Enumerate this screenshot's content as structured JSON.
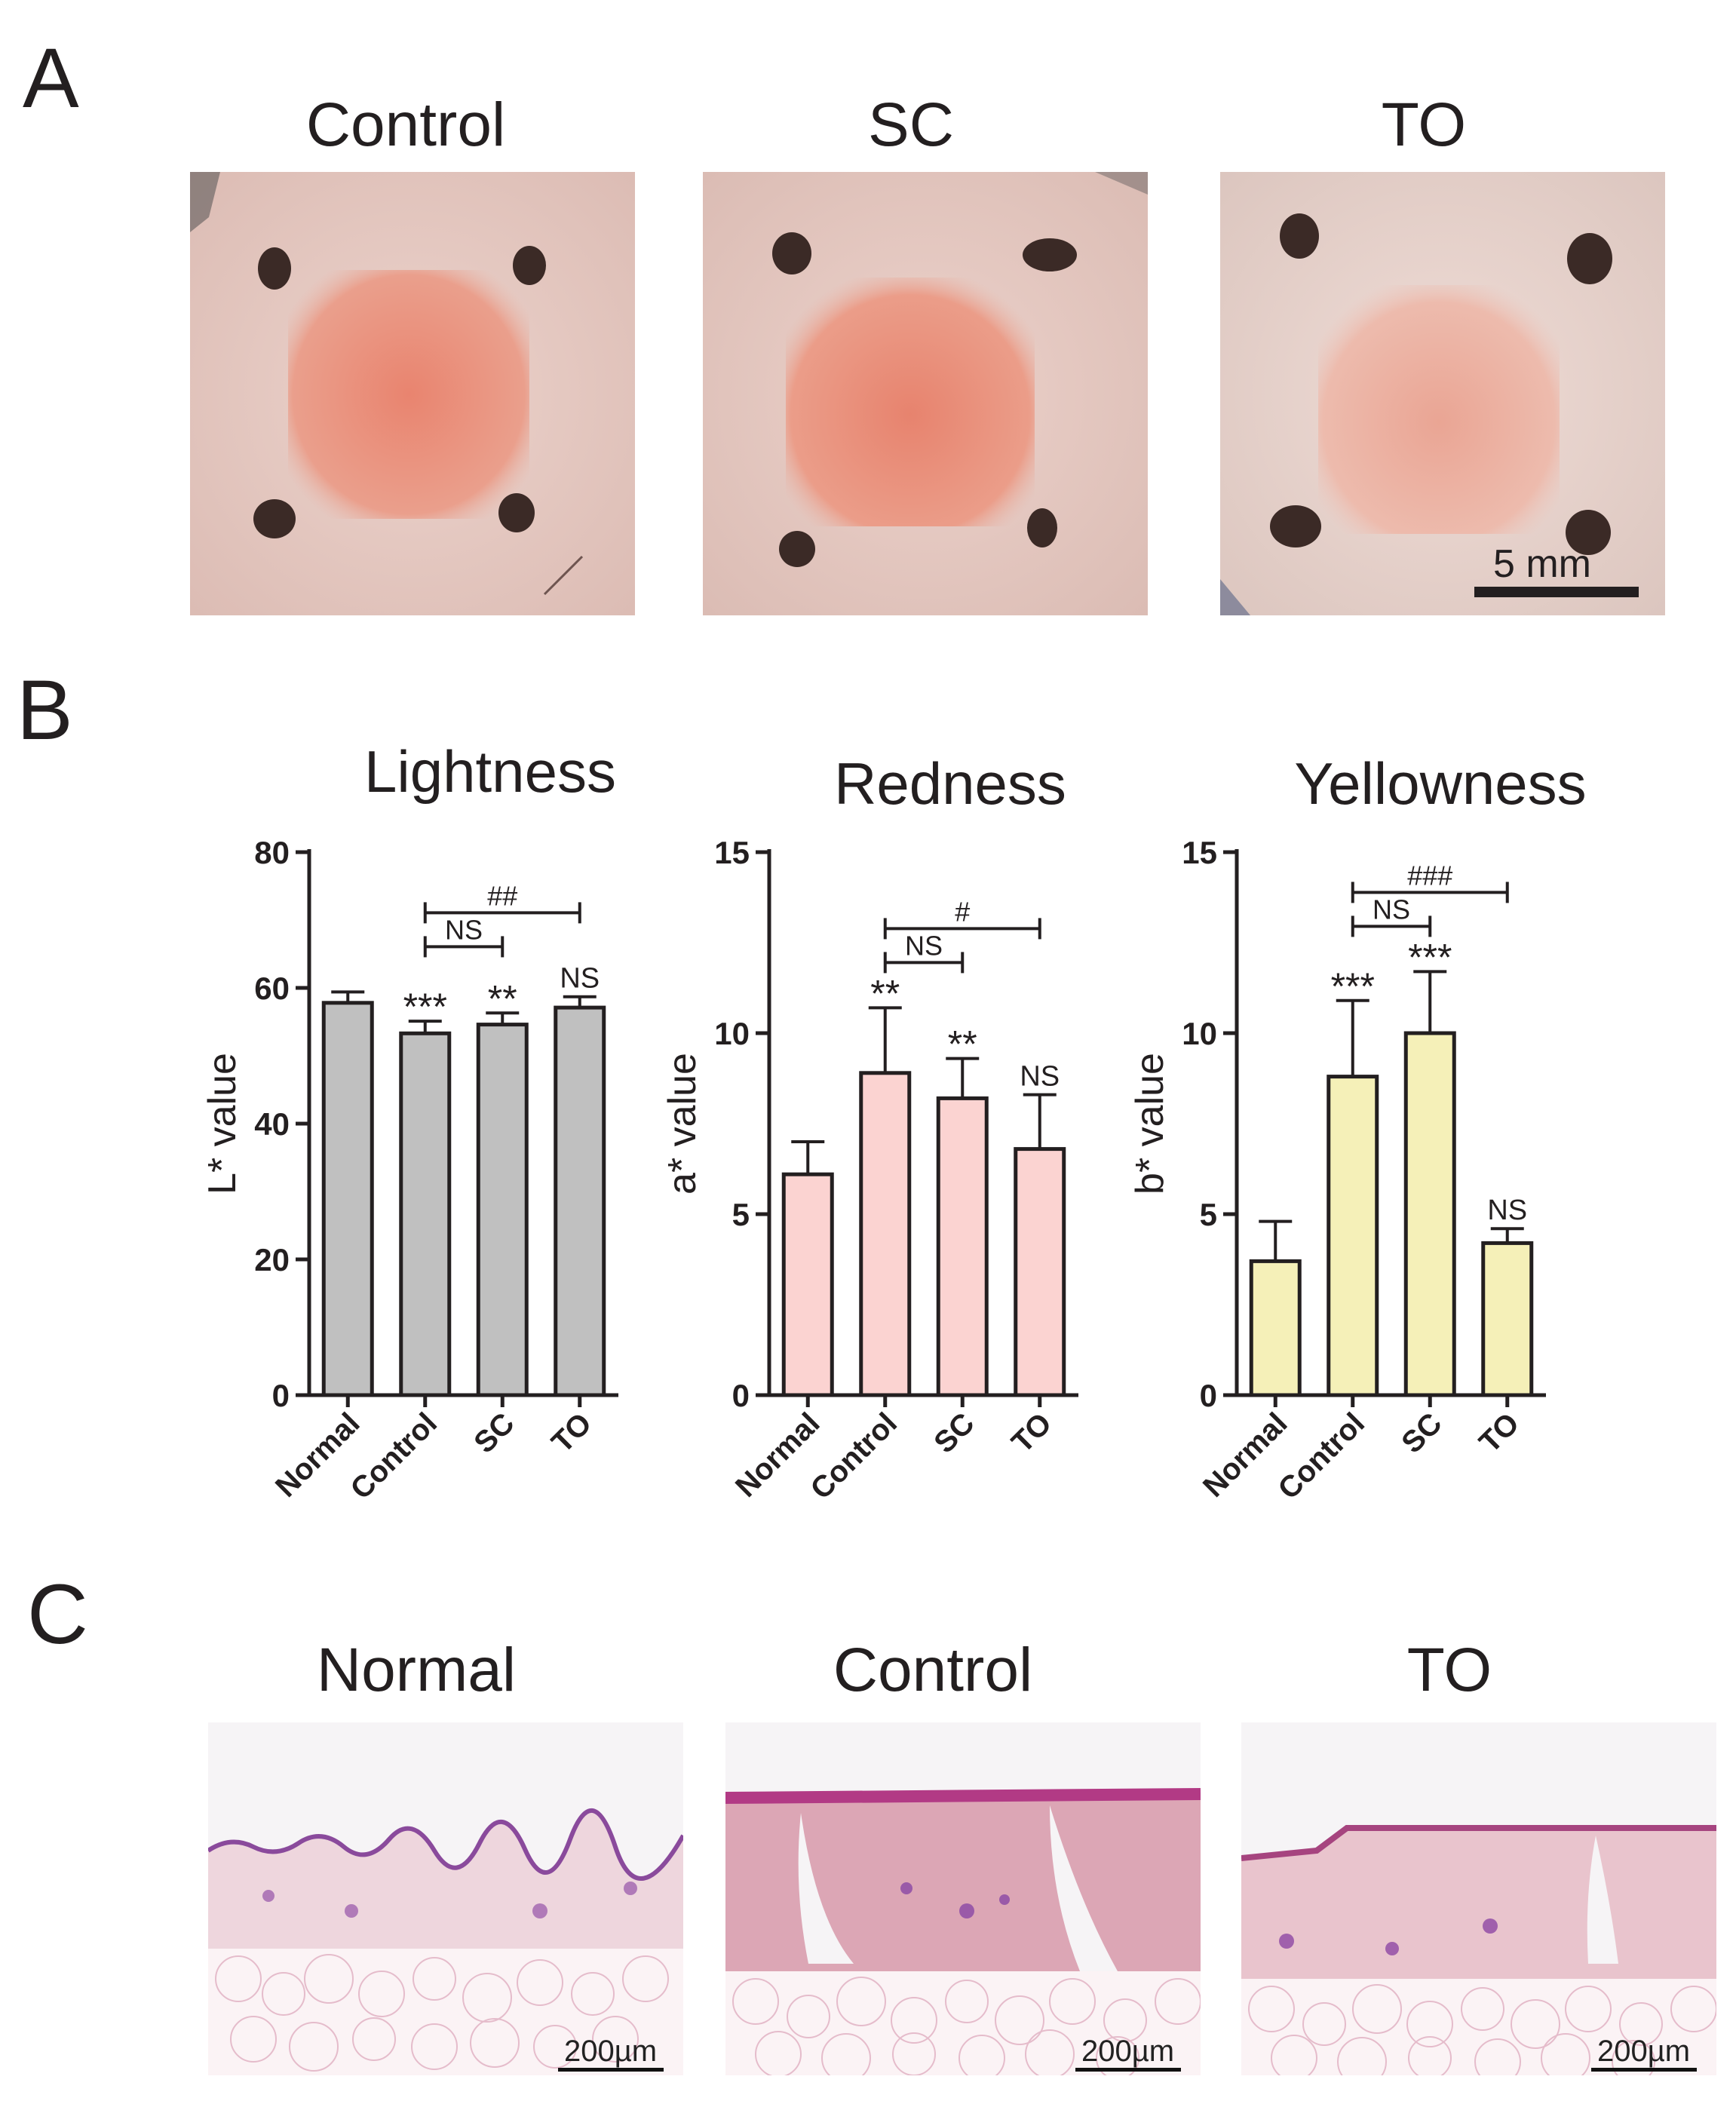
{
  "panels": {
    "a": {
      "letter": "A",
      "titles": [
        "Control",
        "SC",
        "TO"
      ],
      "scale_bar": "5 mm"
    },
    "b": {
      "letter": "B"
    },
    "c": {
      "letter": "C",
      "titles": [
        "Normal",
        "Control",
        "TO"
      ],
      "scale_bars": [
        "200µm",
        "200µm",
        "200µm"
      ]
    }
  },
  "chart_data": [
    {
      "type": "bar",
      "title": "Lightness",
      "ylabel": "L* value",
      "categories": [
        "Normal",
        "Control",
        "SC",
        "TO"
      ],
      "values": [
        57.8,
        53.3,
        54.6,
        57.1
      ],
      "errors": [
        1.6,
        1.8,
        1.7,
        1.6
      ],
      "ylim": [
        0,
        80
      ],
      "yticks": [
        0,
        20,
        40,
        60,
        80
      ],
      "bar_color": "#c0c0c0",
      "bar_labels": [
        "",
        "***",
        "**",
        "NS"
      ],
      "brackets": [
        {
          "from": 1,
          "to": 2,
          "label": "NS"
        },
        {
          "from": 1,
          "to": 3,
          "label": "##"
        }
      ]
    },
    {
      "type": "bar",
      "title": "Redness",
      "ylabel": "a* value",
      "categories": [
        "Normal",
        "Control",
        "SC",
        "TO"
      ],
      "values": [
        6.1,
        8.9,
        8.2,
        6.8
      ],
      "errors": [
        0.9,
        1.8,
        1.1,
        1.5
      ],
      "ylim": [
        0,
        15
      ],
      "yticks": [
        0,
        5,
        10,
        15
      ],
      "bar_color": "#fbd3d1",
      "bar_labels": [
        "",
        "**",
        "**",
        "NS"
      ],
      "brackets": [
        {
          "from": 1,
          "to": 2,
          "label": "NS"
        },
        {
          "from": 1,
          "to": 3,
          "label": "#"
        }
      ]
    },
    {
      "type": "bar",
      "title": "Yellowness",
      "ylabel": "b* value",
      "categories": [
        "Normal",
        "Control",
        "SC",
        "TO"
      ],
      "values": [
        3.7,
        8.8,
        10.0,
        4.2
      ],
      "errors": [
        1.1,
        2.1,
        1.7,
        0.4
      ],
      "ylim": [
        0,
        15
      ],
      "yticks": [
        0,
        5,
        10,
        15
      ],
      "bar_color": "#f5f0b8",
      "bar_labels": [
        "",
        "***",
        "***",
        "NS"
      ],
      "brackets": [
        {
          "from": 1,
          "to": 2,
          "label": "NS"
        },
        {
          "from": 1,
          "to": 3,
          "label": "###"
        }
      ]
    }
  ]
}
